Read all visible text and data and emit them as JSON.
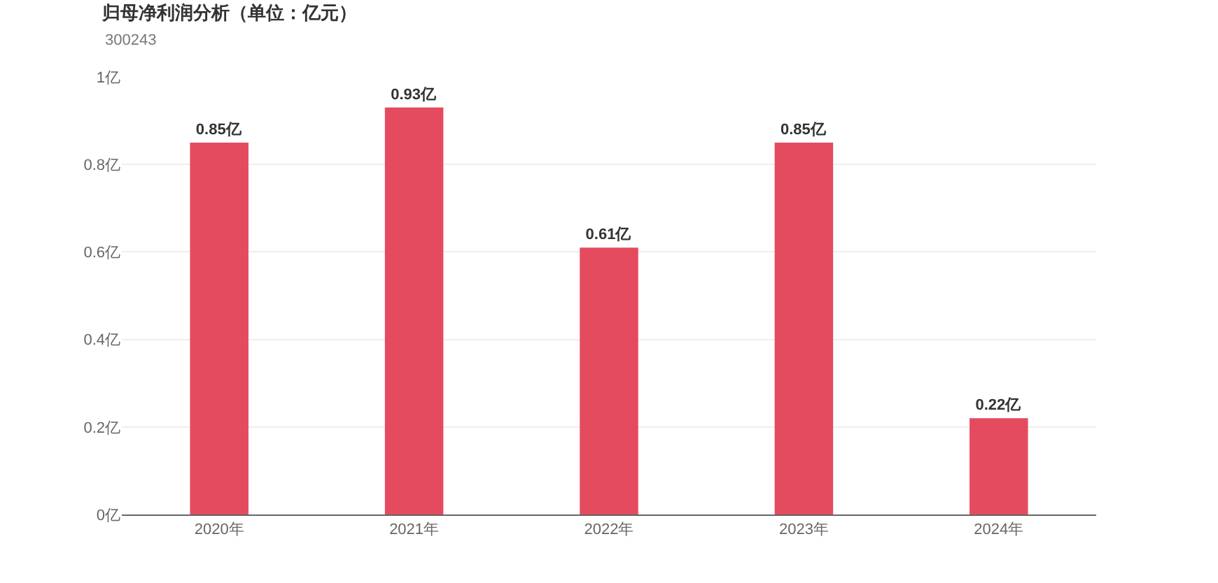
{
  "chart_data": {
    "type": "bar",
    "title": "归母净利润分析（单位：亿元）",
    "subtitle": "300243",
    "categories": [
      "2020年",
      "2021年",
      "2022年",
      "2023年",
      "2024年"
    ],
    "values": [
      0.85,
      0.93,
      0.61,
      0.85,
      0.22
    ],
    "value_labels": [
      "0.85亿",
      "0.93亿",
      "0.61亿",
      "0.85亿",
      "0.22亿"
    ],
    "color": "#e54b5f",
    "ylim": [
      0,
      1
    ],
    "yticks": [
      {
        "value": 0,
        "label": "0亿"
      },
      {
        "value": 0.2,
        "label": "0.2亿"
      },
      {
        "value": 0.4,
        "label": "0.4亿"
      },
      {
        "value": 0.6,
        "label": "0.6亿"
      },
      {
        "value": 0.8,
        "label": "0.8亿"
      },
      {
        "value": 1,
        "label": "1亿"
      }
    ],
    "grid": "y",
    "legend": false
  }
}
